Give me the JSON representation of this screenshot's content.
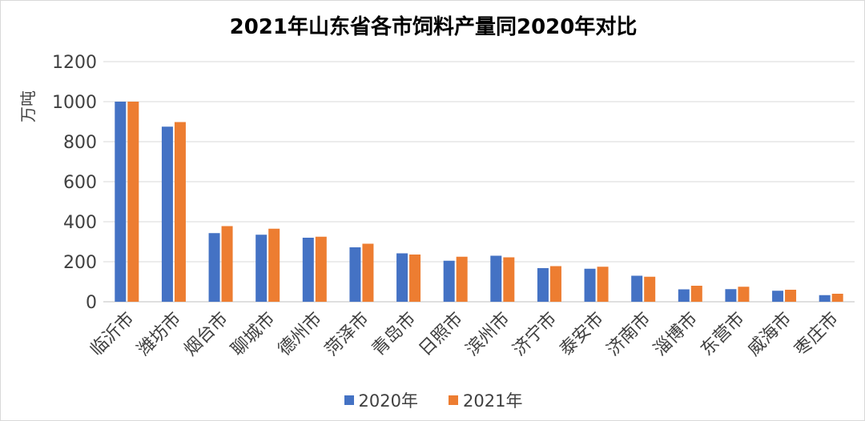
{
  "chart_data": {
    "type": "bar",
    "title": "2021年山东省各市饲料产量同2020年对比",
    "ylabel": "万吨",
    "xlabel": "",
    "ylim": [
      0,
      1200
    ],
    "yticks": [
      0,
      200,
      400,
      600,
      800,
      1000,
      1200
    ],
    "grid": true,
    "legend_position": "bottom",
    "categories": [
      "临沂市",
      "潍坊市",
      "烟台市",
      "聊城市",
      "德州市",
      "菏泽市",
      "青岛市",
      "日照市",
      "滨州市",
      "济宁市",
      "泰安市",
      "济南市",
      "淄博市",
      "东营市",
      "威海市",
      "枣庄市"
    ],
    "series": [
      {
        "name": "2020年",
        "color": "#4472c4",
        "values": [
          1000,
          875,
          343,
          335,
          320,
          272,
          242,
          205,
          230,
          168,
          165,
          130,
          62,
          63,
          55,
          33
        ]
      },
      {
        "name": "2021年",
        "color": "#ed7d31",
        "values": [
          1000,
          898,
          378,
          365,
          325,
          290,
          236,
          225,
          222,
          178,
          175,
          125,
          80,
          75,
          60,
          40
        ]
      }
    ]
  }
}
